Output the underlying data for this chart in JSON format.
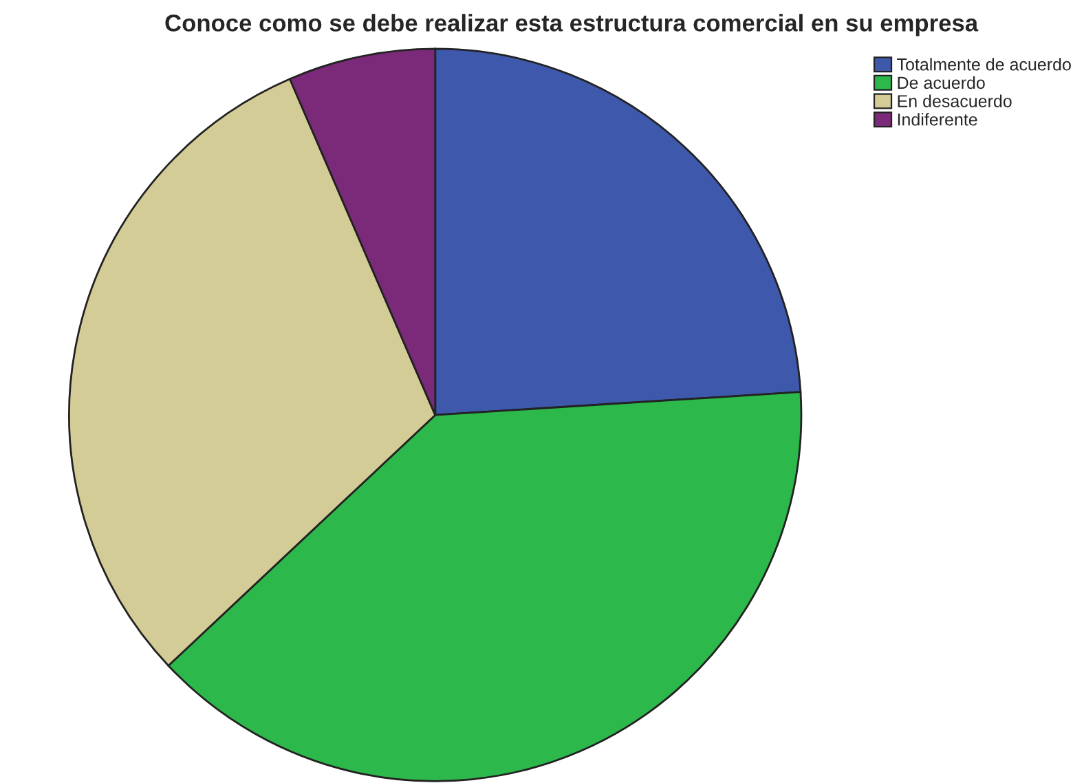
{
  "chart_data": {
    "type": "pie",
    "title": "Conoce como se debe realizar esta estructura comercial en su empresa",
    "categories": [
      "Totalmente de acuerdo",
      "De acuerdo",
      "En desacuerdo",
      "Indiferente"
    ],
    "values": [
      24,
      39,
      30.5,
      6.5
    ],
    "colors": [
      "#3e58ac",
      "#2db84b",
      "#d4cc96",
      "#7b2a7a"
    ],
    "legend": "top right"
  }
}
